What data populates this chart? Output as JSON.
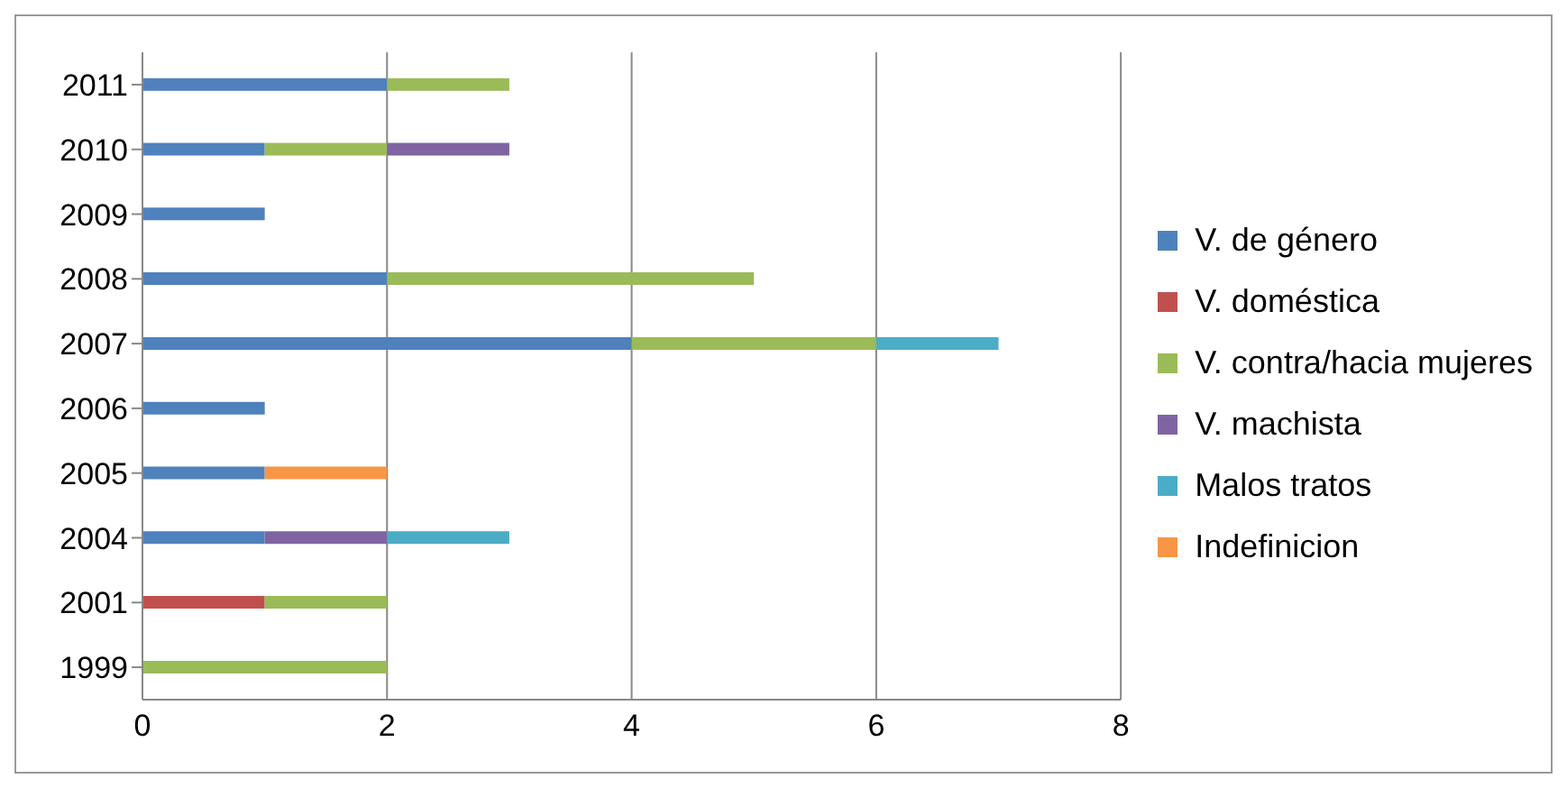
{
  "chart_data": {
    "type": "bar",
    "orientation": "horizontal",
    "stacked": true,
    "categories": [
      "2011",
      "2010",
      "2009",
      "2008",
      "2007",
      "2006",
      "2005",
      "2004",
      "2001",
      "1999"
    ],
    "series": [
      {
        "name": "V. de género",
        "color": "#4f81bd",
        "values": [
          2,
          1,
          1,
          2,
          4,
          1,
          1,
          1,
          null,
          null
        ]
      },
      {
        "name": "V. doméstica",
        "color": "#c0504d",
        "values": [
          null,
          null,
          null,
          null,
          null,
          null,
          null,
          null,
          1,
          null
        ]
      },
      {
        "name": "V. contra/hacia mujeres",
        "color": "#9bbb59",
        "values": [
          1,
          1,
          null,
          3,
          2,
          null,
          null,
          null,
          1,
          2
        ]
      },
      {
        "name": "V. machista",
        "color": "#8064a2",
        "values": [
          null,
          1,
          null,
          null,
          null,
          null,
          null,
          1,
          null,
          null
        ]
      },
      {
        "name": "Malos tratos",
        "color": "#4bacc6",
        "values": [
          null,
          null,
          null,
          null,
          1,
          null,
          null,
          1,
          null,
          null
        ]
      },
      {
        "name": "Indefinicion",
        "color": "#f79646",
        "values": [
          null,
          null,
          null,
          null,
          null,
          null,
          1,
          null,
          null,
          null
        ]
      }
    ],
    "xlim": [
      0,
      8
    ],
    "xticks": [
      0,
      2,
      4,
      6,
      8
    ],
    "grid": "x",
    "legend": "right"
  }
}
